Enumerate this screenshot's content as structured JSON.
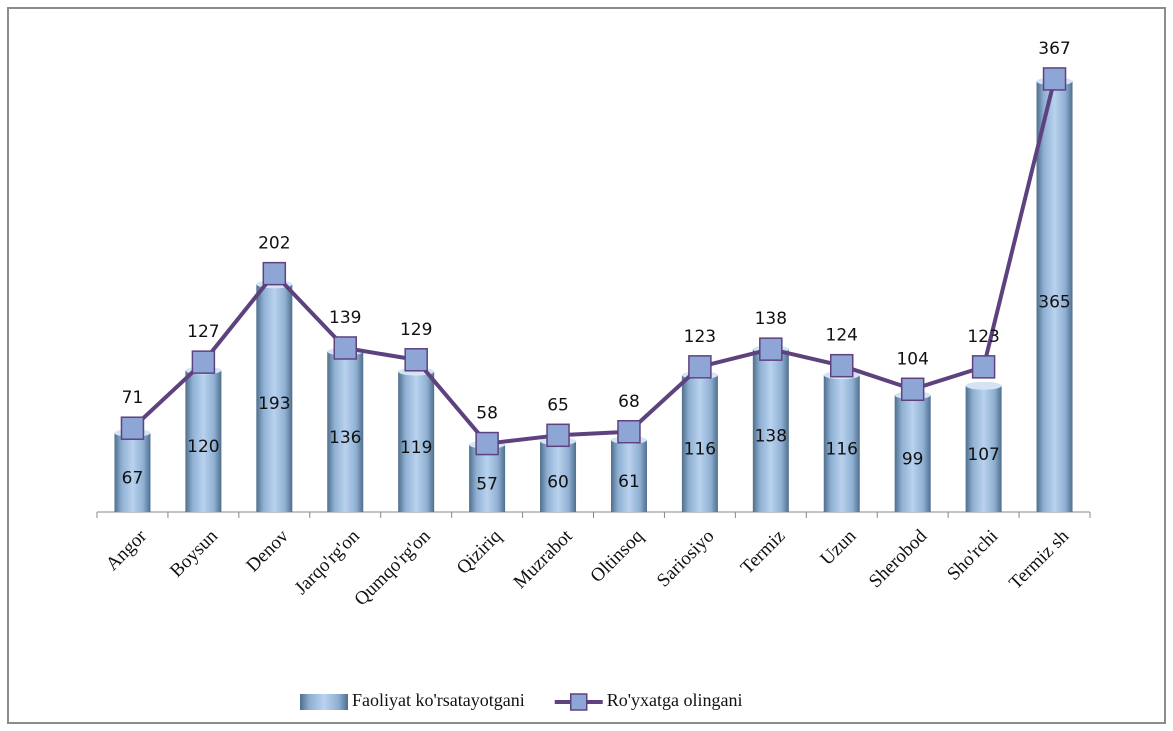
{
  "chart_data": {
    "type": "bar",
    "categories": [
      "Angor",
      "Boysun",
      "Denov",
      "Jarqo'rg'on",
      "Qumqo'rg'on",
      "Qiziriq",
      "Muzrabot",
      "Oltinsoq",
      "Sariosiyo",
      "Termiz",
      "Uzun",
      "Sherobod",
      "Sho'rchi",
      "Termiz sh"
    ],
    "series": [
      {
        "name": "Faoliyat ko'rsatayotgani",
        "type": "bar",
        "color": "#9cbbdc",
        "values": [
          67,
          120,
          193,
          136,
          119,
          57,
          60,
          61,
          116,
          138,
          116,
          99,
          107,
          365
        ]
      },
      {
        "name": "Ro'yxatga olingani",
        "type": "line",
        "color": "#5e4280",
        "marker_color": "#8ea6d6",
        "values": [
          71,
          127,
          202,
          139,
          129,
          58,
          65,
          68,
          123,
          138,
          124,
          104,
          123,
          367
        ]
      }
    ],
    "ylim": [
      0,
      400
    ],
    "legend": "bottom"
  }
}
